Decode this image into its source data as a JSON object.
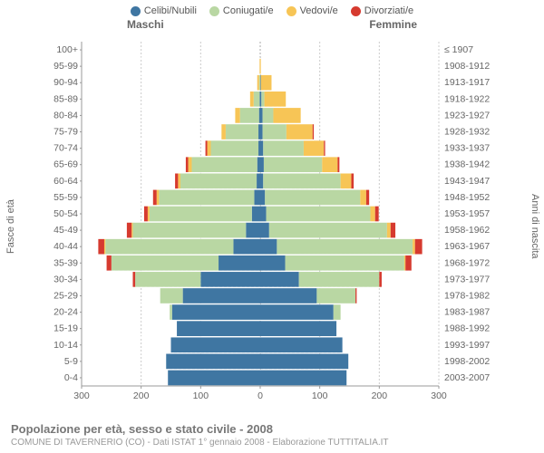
{
  "legend": {
    "items": [
      {
        "label": "Celibi/Nubili",
        "color": "#3f76a2"
      },
      {
        "label": "Coniugati/e",
        "color": "#b9d7a3"
      },
      {
        "label": "Vedovi/e",
        "color": "#f7c556"
      },
      {
        "label": "Divorziati/e",
        "color": "#d63a2f"
      }
    ]
  },
  "header": {
    "left": "Maschi",
    "right": "Femmine"
  },
  "axis": {
    "left_title": "Fasce di età",
    "right_title": "Anni di nascita",
    "xmax": 300,
    "xticks": [
      300,
      200,
      100,
      0,
      100,
      200,
      300
    ],
    "grid_color": "#cccccc",
    "center_color": "#aaaaaa"
  },
  "colors": {
    "single": "#3f76a2",
    "married": "#b9d7a3",
    "widow": "#f7c556",
    "div": "#d63a2f",
    "row_div": "#ffffff"
  },
  "rows": [
    {
      "age": "100+",
      "birth": "≤ 1907",
      "m": {
        "s": 0,
        "c": 0,
        "w": 0,
        "d": 0
      },
      "f": {
        "s": 0,
        "c": 0,
        "w": 0,
        "d": 0
      }
    },
    {
      "age": "95-99",
      "birth": "1908-1912",
      "m": {
        "s": 0,
        "c": 0,
        "w": 1,
        "d": 0
      },
      "f": {
        "s": 0,
        "c": 0,
        "w": 1,
        "d": 0
      }
    },
    {
      "age": "90-94",
      "birth": "1913-1917",
      "m": {
        "s": 0,
        "c": 2,
        "w": 3,
        "d": 0
      },
      "f": {
        "s": 1,
        "c": 0,
        "w": 18,
        "d": 0
      }
    },
    {
      "age": "85-89",
      "birth": "1918-1922",
      "m": {
        "s": 1,
        "c": 10,
        "w": 6,
        "d": 0
      },
      "f": {
        "s": 2,
        "c": 5,
        "w": 36,
        "d": 0
      }
    },
    {
      "age": "80-84",
      "birth": "1923-1927",
      "m": {
        "s": 2,
        "c": 32,
        "w": 8,
        "d": 0
      },
      "f": {
        "s": 4,
        "c": 18,
        "w": 46,
        "d": 0
      }
    },
    {
      "age": "75-79",
      "birth": "1928-1932",
      "m": {
        "s": 3,
        "c": 55,
        "w": 7,
        "d": 0
      },
      "f": {
        "s": 4,
        "c": 40,
        "w": 44,
        "d": 2
      }
    },
    {
      "age": "70-74",
      "birth": "1933-1937",
      "m": {
        "s": 3,
        "c": 80,
        "w": 6,
        "d": 3
      },
      "f": {
        "s": 5,
        "c": 68,
        "w": 34,
        "d": 2
      }
    },
    {
      "age": "65-69",
      "birth": "1938-1942",
      "m": {
        "s": 5,
        "c": 110,
        "w": 6,
        "d": 4
      },
      "f": {
        "s": 6,
        "c": 98,
        "w": 26,
        "d": 3
      }
    },
    {
      "age": "60-64",
      "birth": "1943-1947",
      "m": {
        "s": 6,
        "c": 128,
        "w": 4,
        "d": 5
      },
      "f": {
        "s": 5,
        "c": 130,
        "w": 18,
        "d": 4
      }
    },
    {
      "age": "55-59",
      "birth": "1948-1952",
      "m": {
        "s": 10,
        "c": 160,
        "w": 4,
        "d": 6
      },
      "f": {
        "s": 8,
        "c": 160,
        "w": 10,
        "d": 5
      }
    },
    {
      "age": "50-54",
      "birth": "1953-1957",
      "m": {
        "s": 14,
        "c": 172,
        "w": 3,
        "d": 6
      },
      "f": {
        "s": 10,
        "c": 175,
        "w": 8,
        "d": 6
      }
    },
    {
      "age": "45-49",
      "birth": "1958-1962",
      "m": {
        "s": 24,
        "c": 190,
        "w": 2,
        "d": 8
      },
      "f": {
        "s": 15,
        "c": 198,
        "w": 6,
        "d": 8
      }
    },
    {
      "age": "40-44",
      "birth": "1963-1967",
      "m": {
        "s": 45,
        "c": 215,
        "w": 2,
        "d": 10
      },
      "f": {
        "s": 28,
        "c": 228,
        "w": 4,
        "d": 12
      }
    },
    {
      "age": "35-39",
      "birth": "1968-1972",
      "m": {
        "s": 70,
        "c": 180,
        "w": 0,
        "d": 8
      },
      "f": {
        "s": 42,
        "c": 200,
        "w": 2,
        "d": 10
      }
    },
    {
      "age": "30-34",
      "birth": "1973-1977",
      "m": {
        "s": 100,
        "c": 110,
        "w": 0,
        "d": 4
      },
      "f": {
        "s": 65,
        "c": 135,
        "w": 0,
        "d": 4
      }
    },
    {
      "age": "25-29",
      "birth": "1978-1982",
      "m": {
        "s": 130,
        "c": 38,
        "w": 0,
        "d": 0
      },
      "f": {
        "s": 95,
        "c": 65,
        "w": 0,
        "d": 2
      }
    },
    {
      "age": "20-24",
      "birth": "1983-1987",
      "m": {
        "s": 148,
        "c": 4,
        "w": 0,
        "d": 0
      },
      "f": {
        "s": 123,
        "c": 12,
        "w": 0,
        "d": 0
      }
    },
    {
      "age": "15-19",
      "birth": "1988-1992",
      "m": {
        "s": 140,
        "c": 0,
        "w": 0,
        "d": 0
      },
      "f": {
        "s": 128,
        "c": 0,
        "w": 0,
        "d": 0
      }
    },
    {
      "age": "10-14",
      "birth": "1993-1997",
      "m": {
        "s": 150,
        "c": 0,
        "w": 0,
        "d": 0
      },
      "f": {
        "s": 138,
        "c": 0,
        "w": 0,
        "d": 0
      }
    },
    {
      "age": "5-9",
      "birth": "1998-2002",
      "m": {
        "s": 158,
        "c": 0,
        "w": 0,
        "d": 0
      },
      "f": {
        "s": 148,
        "c": 0,
        "w": 0,
        "d": 0
      }
    },
    {
      "age": "0-4",
      "birth": "2003-2007",
      "m": {
        "s": 155,
        "c": 0,
        "w": 0,
        "d": 0
      },
      "f": {
        "s": 145,
        "c": 0,
        "w": 0,
        "d": 0
      }
    }
  ],
  "footer": {
    "title": "Popolazione per età, sesso e stato civile - 2008",
    "subtitle": "COMUNE DI TAVERNERIO (CO) - Dati ISTAT 1° gennaio 2008 - Elaborazione TUTTITALIA.IT"
  }
}
